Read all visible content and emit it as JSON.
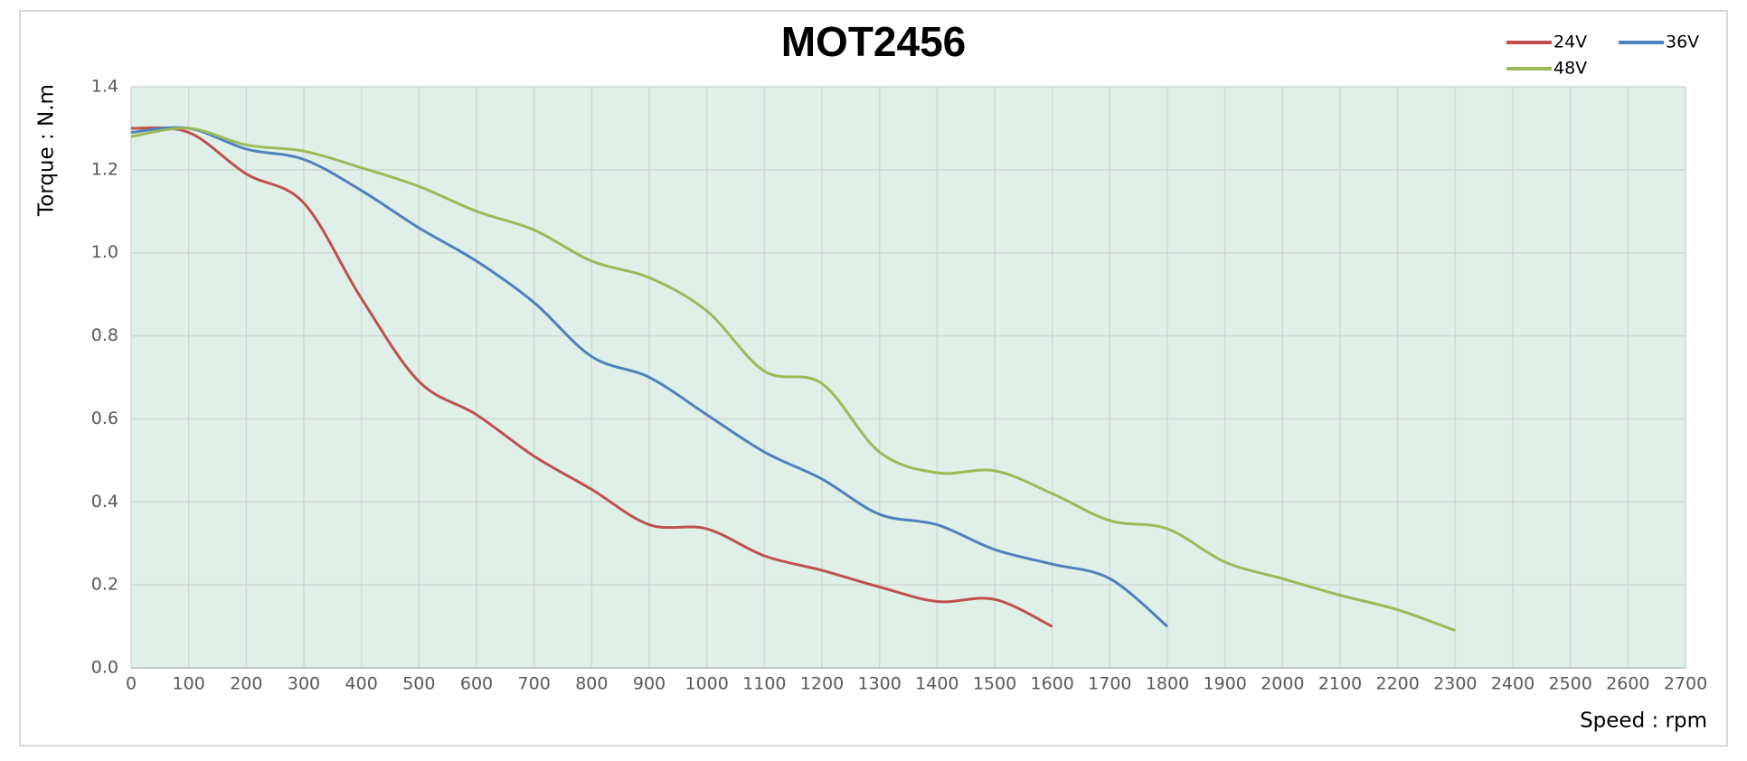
{
  "chart_data": {
    "type": "line",
    "title": "MOT2456",
    "x_label": "Speed : rpm",
    "y_label": "Torque : N.m",
    "x": [
      0,
      100,
      200,
      300,
      400,
      500,
      600,
      700,
      800,
      900,
      1000,
      1100,
      1200,
      1300,
      1400,
      1500,
      1600,
      1700,
      1800,
      1900,
      2000,
      2100,
      2200,
      2300
    ],
    "series": [
      {
        "name": "24V",
        "color": "#c0504d",
        "values": [
          1.3,
          1.29,
          1.19,
          1.12,
          0.89,
          0.69,
          0.61,
          0.51,
          0.43,
          0.345,
          0.335,
          0.27,
          0.235,
          0.195,
          0.16,
          0.165,
          0.1,
          null,
          null,
          null,
          null,
          null,
          null,
          null
        ]
      },
      {
        "name": "36V",
        "color": "#4f81bd",
        "values": [
          1.29,
          1.3,
          1.25,
          1.225,
          1.15,
          1.06,
          0.98,
          0.88,
          0.75,
          0.7,
          0.61,
          0.52,
          0.455,
          0.37,
          0.345,
          0.285,
          0.25,
          0.215,
          0.1,
          null,
          null,
          null,
          null,
          null
        ]
      },
      {
        "name": "48V",
        "color": "#9bbb59",
        "values": [
          1.28,
          1.3,
          1.26,
          1.245,
          1.205,
          1.16,
          1.1,
          1.055,
          0.98,
          0.94,
          0.86,
          0.715,
          0.685,
          0.52,
          0.47,
          0.475,
          0.42,
          0.355,
          0.335,
          0.255,
          0.215,
          0.175,
          0.14,
          0.09
        ]
      }
    ],
    "xlim": [
      0,
      2700
    ],
    "xticks": [
      0,
      100,
      200,
      300,
      400,
      500,
      600,
      700,
      800,
      900,
      1000,
      1100,
      1200,
      1300,
      1400,
      1500,
      1600,
      1700,
      1800,
      1900,
      2000,
      2100,
      2200,
      2300,
      2400,
      2500,
      2600,
      2700
    ],
    "ylim": [
      0,
      1.4
    ],
    "yticks": [
      {
        "value": 0,
        "label": "0.0"
      },
      0.2,
      0.4,
      0.6,
      0.8,
      {
        "value": 1,
        "label": "1.0"
      },
      1.2,
      1.4
    ],
    "grid": true,
    "legend": "top-right"
  }
}
